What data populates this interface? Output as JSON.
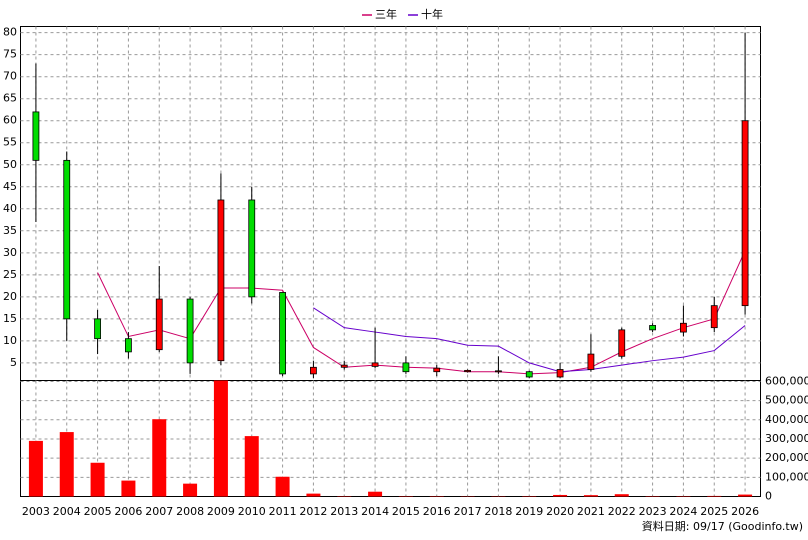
{
  "chart_data": {
    "type": "candlestick",
    "categories": [
      "2003",
      "2004",
      "2005",
      "2006",
      "2007",
      "2008",
      "2009",
      "2010",
      "2011",
      "2012",
      "2013",
      "2014",
      "2015",
      "2016",
      "2017",
      "2018",
      "2019",
      "2020",
      "2021",
      "2022",
      "2023",
      "2024",
      "2025",
      "2026"
    ],
    "open": [
      62,
      51,
      15,
      10.5,
      8,
      19.5,
      5.5,
      42,
      21,
      2.5,
      4,
      4.2,
      5,
      3,
      3,
      3,
      3,
      1.8,
      3.5,
      6.5,
      13.5,
      12,
      13,
      18
    ],
    "high": [
      73,
      53,
      17,
      12,
      27,
      20,
      48,
      45,
      21,
      5.5,
      5.5,
      13,
      6.5,
      4.5,
      3.5,
      6.5,
      3.2,
      5,
      11.5,
      13,
      14,
      18,
      20,
      80
    ],
    "low": [
      37,
      10,
      7,
      6,
      7.5,
      2.5,
      4.5,
      18.5,
      2,
      1.5,
      3.5,
      3.8,
      2.5,
      2,
      2.8,
      2.5,
      1.5,
      1.5,
      3,
      6,
      12,
      11,
      12,
      16
    ],
    "close": [
      51,
      15,
      10.5,
      7.5,
      19.5,
      5,
      42,
      20,
      2.5,
      4,
      4.5,
      5,
      3,
      3.8,
      3.3,
      3.2,
      1.8,
      3.5,
      7,
      12.5,
      12.5,
      14,
      18,
      60
    ],
    "up_color": "#ff0000",
    "down_color": "#00dd00",
    "series": [
      {
        "name": "三年",
        "color": "#cc0066",
        "values": [
          null,
          null,
          25.5,
          11,
          12.5,
          10.5,
          22,
          22,
          21.5,
          8.5,
          4,
          4.5,
          4,
          3.8,
          3,
          3,
          2.5,
          2.8,
          4,
          7.5,
          10.5,
          13,
          15,
          30.5
        ]
      },
      {
        "name": "十年",
        "color": "#6600cc",
        "values": [
          null,
          null,
          null,
          null,
          null,
          null,
          null,
          null,
          null,
          17.5,
          13,
          12,
          11,
          10.5,
          9,
          8.8,
          5,
          3,
          3.5,
          4.5,
          5.5,
          6.3,
          7.8,
          13.5
        ]
      }
    ],
    "ylim": [
      1,
      81.4
    ],
    "yticks": [
      5,
      10,
      15,
      20,
      25,
      30,
      35,
      40,
      45,
      50,
      55,
      60,
      65,
      70,
      75,
      80
    ],
    "volume": {
      "color": "#ff0000",
      "axis": "y2",
      "values": [
        290000,
        336000,
        176000,
        83000,
        403000,
        67000,
        605000,
        315000,
        103000,
        15000,
        2000,
        25000,
        2000,
        2000,
        1500,
        1500,
        2000,
        8000,
        7000,
        12000,
        2000,
        2000,
        3000,
        10000
      ]
    },
    "y2lim": [
      0,
      605000
    ],
    "y2ticks": [
      0,
      {
        "value": 100000,
        "label": "100,000"
      },
      {
        "value": 200000,
        "label": "200,000"
      },
      {
        "value": 300000,
        "label": "300,000"
      },
      {
        "value": 400000,
        "label": "400,000"
      },
      {
        "value": 500000,
        "label": "500,000"
      },
      {
        "value": 600000,
        "label": "600,000"
      }
    ],
    "grid": true,
    "legend": "top",
    "source": "資料日期: 09/17 (Goodinfo.tw)"
  }
}
